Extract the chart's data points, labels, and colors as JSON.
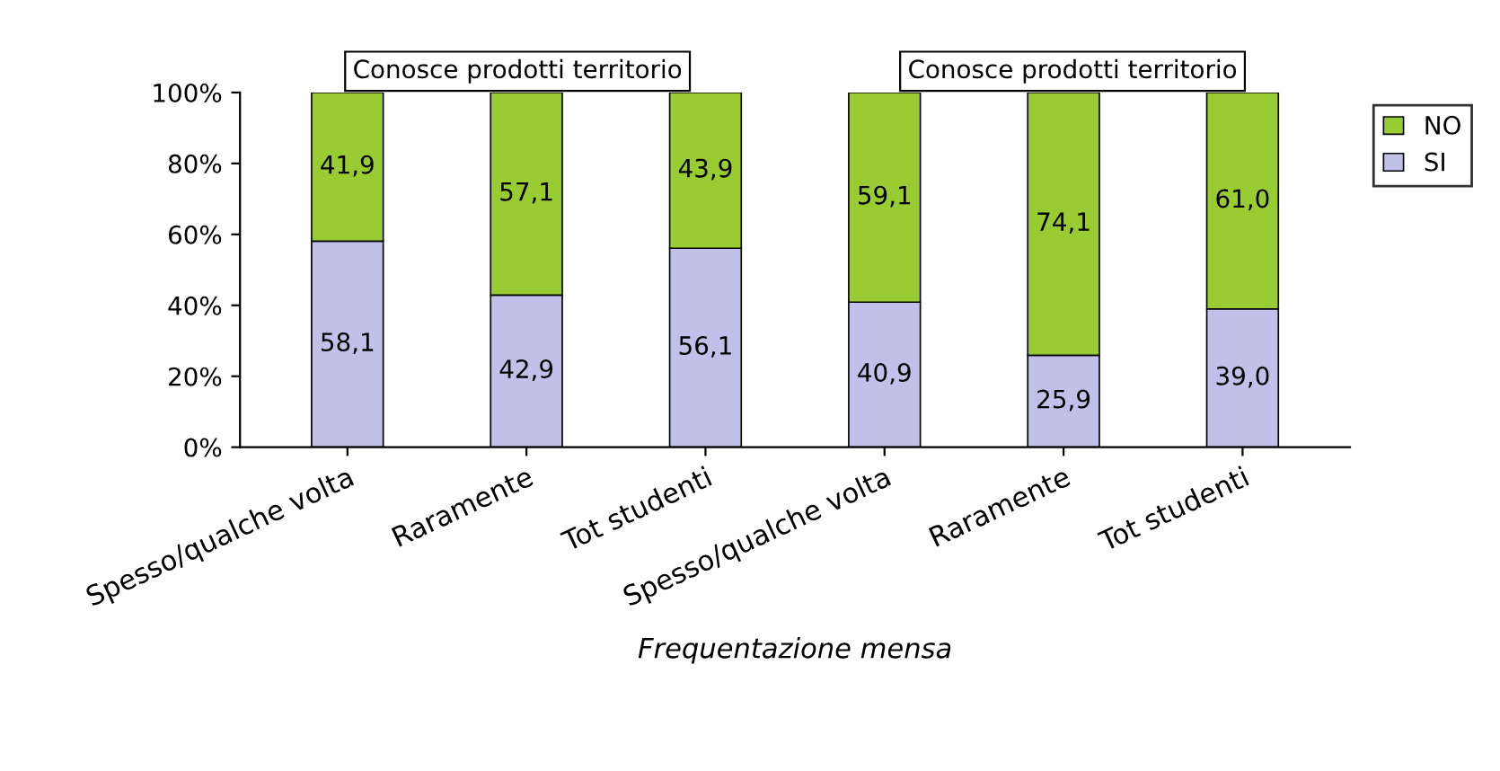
{
  "chart_data": {
    "type": "bar",
    "stacked": true,
    "xlabel": "Frequentazione mensa",
    "annotations": [
      "Conosce prodotti territorio",
      "Conosce prodotti territorio"
    ],
    "categories": [
      "Spesso/qualche volta",
      "Raramente",
      "Tot studenti",
      "Spesso/qualche volta",
      "Raramente",
      "Tot studenti"
    ],
    "series": [
      {
        "name": "SI",
        "color": "#c0c0e8",
        "values": [
          58.1,
          42.9,
          56.1,
          40.9,
          25.9,
          39.0
        ],
        "value_labels": [
          "58,1",
          "42,9",
          "56,1",
          "40,9",
          "25,9",
          "39,0"
        ]
      },
      {
        "name": "NO",
        "color": "#99cc33",
        "values": [
          41.9,
          57.1,
          43.9,
          59.1,
          74.1,
          61.0
        ],
        "value_labels": [
          "41,9",
          "57,1",
          "43,9",
          "59,1",
          "74,1",
          "61,0"
        ]
      }
    ],
    "ylim": [
      0,
      100
    ],
    "yticks": [
      {
        "value": 0,
        "label": "0%"
      },
      {
        "value": 20,
        "label": "20%"
      },
      {
        "value": 40,
        "label": "40%"
      },
      {
        "value": 60,
        "label": "60%"
      },
      {
        "value": 80,
        "label": "80%"
      },
      {
        "value": 100,
        "label": "100%"
      }
    ],
    "grid": false,
    "legend": "right"
  }
}
